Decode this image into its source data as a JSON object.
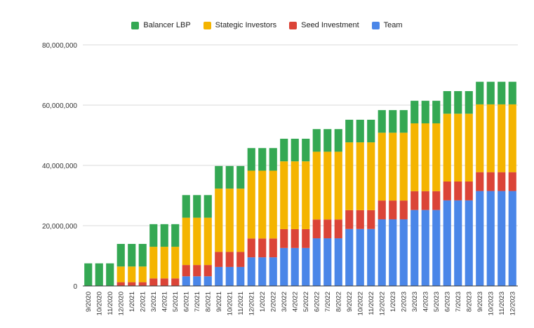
{
  "chart_data": {
    "type": "bar",
    "stacked": true,
    "title": "",
    "xlabel": "",
    "ylabel": "",
    "ylim": [
      0,
      80000000
    ],
    "yticks": [
      0,
      20000000,
      40000000,
      60000000,
      80000000
    ],
    "ytick_labels": [
      "0",
      "20,000,000",
      "40,000,000",
      "60,000,000",
      "80,000,000"
    ],
    "grid": true,
    "legend_position": "top",
    "categories": [
      "9/2020",
      "10/2020",
      "11/2020",
      "12/2020",
      "1/2021",
      "2/2021",
      "3/2021",
      "4/2021",
      "5/2021",
      "6/2021",
      "7/2021",
      "8/2021",
      "9/2021",
      "10/2021",
      "11/2021",
      "12/2021",
      "1/2022",
      "2/2022",
      "3/2022",
      "4/2022",
      "5/2022",
      "6/2022",
      "7/2022",
      "8/2022",
      "9/2022",
      "10/2022",
      "11/2022",
      "12/2022",
      "1/2023",
      "2/2023",
      "3/2023",
      "4/2023",
      "5/2023",
      "6/2023",
      "7/2023",
      "8/2023",
      "9/2023",
      "10/2023",
      "11/2023",
      "12/2023"
    ],
    "series": [
      {
        "name": "Team",
        "color": "#4a86e8",
        "values": [
          0,
          0,
          0,
          0,
          0,
          0,
          0,
          0,
          0,
          3200000,
          3200000,
          3200000,
          6300000,
          6300000,
          6300000,
          9500000,
          9500000,
          9500000,
          12600000,
          12600000,
          12600000,
          15800000,
          15800000,
          15800000,
          18900000,
          18900000,
          18900000,
          22100000,
          22100000,
          22100000,
          25200000,
          25200000,
          25200000,
          28400000,
          28400000,
          28400000,
          31500000,
          31500000,
          31500000,
          31500000
        ]
      },
      {
        "name": "Seed Investment",
        "color": "#db4437",
        "values": [
          0,
          0,
          0,
          1250000,
          1250000,
          1250000,
          2500000,
          2500000,
          2500000,
          3750000,
          3750000,
          3750000,
          5000000,
          5000000,
          5000000,
          6250000,
          6250000,
          6250000,
          6250000,
          6250000,
          6250000,
          6250000,
          6250000,
          6250000,
          6250000,
          6250000,
          6250000,
          6250000,
          6250000,
          6250000,
          6250000,
          6250000,
          6250000,
          6250000,
          6250000,
          6250000,
          6250000,
          6250000,
          6250000,
          6250000
        ]
      },
      {
        "name": "Stategic Investors",
        "color": "#f4b400",
        "values": [
          0,
          0,
          0,
          5200000,
          5200000,
          5200000,
          10500000,
          10500000,
          10500000,
          15700000,
          15700000,
          15700000,
          21000000,
          21000000,
          21000000,
          22500000,
          22500000,
          22500000,
          22500000,
          22500000,
          22500000,
          22500000,
          22500000,
          22500000,
          22500000,
          22500000,
          22500000,
          22500000,
          22500000,
          22500000,
          22500000,
          22500000,
          22500000,
          22500000,
          22500000,
          22500000,
          22500000,
          22500000,
          22500000,
          22500000
        ]
      },
      {
        "name": "Balancer LBP",
        "color": "#34a853",
        "values": [
          7500000,
          7500000,
          7500000,
          7500000,
          7500000,
          7500000,
          7500000,
          7500000,
          7500000,
          7500000,
          7500000,
          7500000,
          7500000,
          7500000,
          7500000,
          7500000,
          7500000,
          7500000,
          7500000,
          7500000,
          7500000,
          7500000,
          7500000,
          7500000,
          7500000,
          7500000,
          7500000,
          7500000,
          7500000,
          7500000,
          7500000,
          7500000,
          7500000,
          7500000,
          7500000,
          7500000,
          7500000,
          7500000,
          7500000,
          7500000
        ]
      }
    ],
    "legend_order": [
      "Balancer LBP",
      "Stategic Investors",
      "Seed Investment",
      "Team"
    ]
  }
}
